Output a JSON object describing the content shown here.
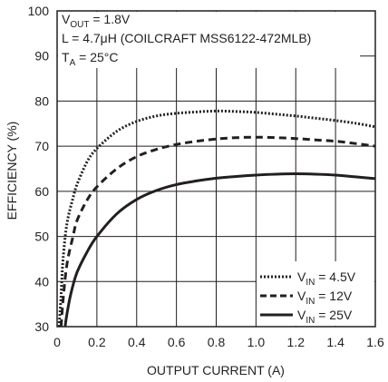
{
  "chart_data": {
    "type": "line",
    "xlabel": "OUTPUT CURRENT (A)",
    "ylabel": "EFFICIENCY (%)",
    "xlim": [
      0,
      1.6
    ],
    "ylim": [
      30,
      100
    ],
    "x_ticks": [
      "0",
      "0.2",
      "0.4",
      "0.6",
      "0.8",
      "1.0",
      "1.2",
      "1.4",
      "1.6"
    ],
    "y_ticks": [
      "30",
      "40",
      "50",
      "60",
      "70",
      "80",
      "90",
      "100"
    ],
    "grid": true,
    "annotations": {
      "vout": {
        "main": "V",
        "sub": "OUT",
        "rest": " = 1.8V"
      },
      "inductor": "L = 4.7μH (COILCRAFT MSS6122-472MLB)",
      "temp": {
        "main": "T",
        "sub": "A",
        "rest": " = 25°C"
      }
    },
    "legend_position": "bottom-right",
    "series": [
      {
        "name": "VIN = 4.5V",
        "label": {
          "main": "V",
          "sub": "IN",
          "rest": " = 4.5V"
        },
        "style": "dotted",
        "x": [
          0.01,
          0.02,
          0.03,
          0.05,
          0.08,
          0.1,
          0.15,
          0.2,
          0.3,
          0.4,
          0.5,
          0.6,
          0.7,
          0.8,
          0.9,
          1.0,
          1.1,
          1.2,
          1.3,
          1.4,
          1.5,
          1.6
        ],
        "values": [
          30,
          37,
          45,
          53,
          58.5,
          61.5,
          66.5,
          69.5,
          73.3,
          75.5,
          76.7,
          77.3,
          77.6,
          77.8,
          77.7,
          77.5,
          77.1,
          76.7,
          76.2,
          75.7,
          75.1,
          74.3
        ]
      },
      {
        "name": "VIN = 12V",
        "label": {
          "main": "V",
          "sub": "IN",
          "rest": " = 12V"
        },
        "style": "dashed",
        "x": [
          0.02,
          0.03,
          0.05,
          0.08,
          0.1,
          0.15,
          0.2,
          0.3,
          0.4,
          0.5,
          0.6,
          0.7,
          0.8,
          0.9,
          1.0,
          1.1,
          1.2,
          1.3,
          1.4,
          1.5,
          1.6
        ],
        "values": [
          30,
          36,
          44,
          50,
          53.5,
          58,
          61,
          65,
          67.7,
          69.3,
          70.4,
          71.1,
          71.6,
          71.9,
          72.0,
          71.9,
          71.7,
          71.4,
          71.1,
          70.6,
          70.0
        ]
      },
      {
        "name": "VIN = 25V",
        "label": {
          "main": "V",
          "sub": "IN",
          "rest": " = 25V"
        },
        "style": "solid",
        "x": [
          0.04,
          0.05,
          0.07,
          0.1,
          0.15,
          0.2,
          0.3,
          0.4,
          0.5,
          0.6,
          0.7,
          0.8,
          0.9,
          1.0,
          1.1,
          1.2,
          1.3,
          1.4,
          1.5,
          1.6
        ],
        "values": [
          30,
          33,
          37.5,
          42,
          46.5,
          50,
          55,
          58.2,
          60.2,
          61.5,
          62.3,
          62.9,
          63.3,
          63.6,
          63.8,
          63.9,
          63.8,
          63.6,
          63.2,
          62.8
        ]
      }
    ]
  }
}
